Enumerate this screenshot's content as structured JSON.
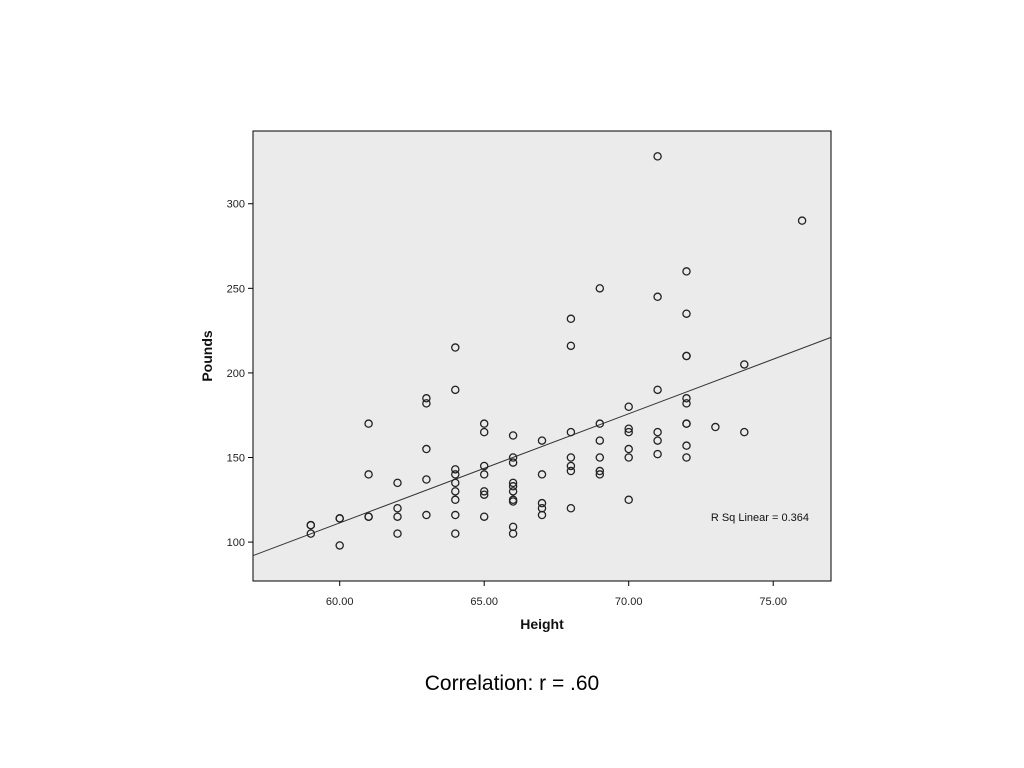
{
  "chart_data": {
    "type": "scatter",
    "xlabel": "Height",
    "ylabel": "Pounds",
    "xlim": [
      57,
      77
    ],
    "ylim": [
      77,
      343
    ],
    "x_ticks": [
      60,
      65,
      70,
      75
    ],
    "x_tick_labels": [
      "60.00",
      "65.00",
      "70.00",
      "75.00"
    ],
    "y_ticks": [
      100,
      150,
      200,
      250,
      300
    ],
    "y_tick_labels": [
      "100",
      "150",
      "200",
      "250",
      "300"
    ],
    "grid": false,
    "plot_background": "#ebebeb",
    "marker": "open-circle",
    "fit_line": {
      "type": "linear",
      "x": [
        57,
        77
      ],
      "y": [
        92,
        221
      ]
    },
    "annotation": "R Sq Linear = 0.364",
    "points": [
      [
        59,
        110
      ],
      [
        59,
        110
      ],
      [
        59,
        105
      ],
      [
        60,
        114
      ],
      [
        60,
        114
      ],
      [
        60,
        98
      ],
      [
        61,
        170
      ],
      [
        61,
        140
      ],
      [
        61,
        115
      ],
      [
        61,
        115
      ],
      [
        62,
        135
      ],
      [
        62,
        120
      ],
      [
        62,
        115
      ],
      [
        62,
        105
      ],
      [
        63,
        185
      ],
      [
        63,
        182
      ],
      [
        63,
        155
      ],
      [
        63,
        137
      ],
      [
        63,
        116
      ],
      [
        64,
        215
      ],
      [
        64,
        190
      ],
      [
        64,
        143
      ],
      [
        64,
        140
      ],
      [
        64,
        135
      ],
      [
        64,
        130
      ],
      [
        64,
        125
      ],
      [
        64,
        116
      ],
      [
        64,
        105
      ],
      [
        65,
        170
      ],
      [
        65,
        165
      ],
      [
        65,
        145
      ],
      [
        65,
        140
      ],
      [
        65,
        130
      ],
      [
        65,
        128
      ],
      [
        65,
        115
      ],
      [
        66,
        163
      ],
      [
        66,
        150
      ],
      [
        66,
        147
      ],
      [
        66,
        135
      ],
      [
        66,
        133
      ],
      [
        66,
        130
      ],
      [
        66,
        125
      ],
      [
        66,
        124
      ],
      [
        66,
        109
      ],
      [
        66,
        105
      ],
      [
        67,
        160
      ],
      [
        67,
        140
      ],
      [
        67,
        123
      ],
      [
        67,
        120
      ],
      [
        67,
        116
      ],
      [
        68,
        232
      ],
      [
        68,
        216
      ],
      [
        68,
        165
      ],
      [
        68,
        150
      ],
      [
        68,
        145
      ],
      [
        68,
        142
      ],
      [
        68,
        120
      ],
      [
        69,
        250
      ],
      [
        69,
        170
      ],
      [
        69,
        160
      ],
      [
        69,
        150
      ],
      [
        69,
        142
      ],
      [
        69,
        140
      ],
      [
        70,
        180
      ],
      [
        70,
        167
      ],
      [
        70,
        165
      ],
      [
        70,
        155
      ],
      [
        70,
        150
      ],
      [
        70,
        125
      ],
      [
        71,
        328
      ],
      [
        71,
        245
      ],
      [
        71,
        190
      ],
      [
        71,
        165
      ],
      [
        71,
        160
      ],
      [
        71,
        152
      ],
      [
        72,
        260
      ],
      [
        72,
        235
      ],
      [
        72,
        210
      ],
      [
        72,
        210
      ],
      [
        72,
        185
      ],
      [
        72,
        182
      ],
      [
        72,
        170
      ],
      [
        72,
        170
      ],
      [
        72,
        157
      ],
      [
        72,
        150
      ],
      [
        73,
        168
      ],
      [
        74,
        205
      ],
      [
        74,
        165
      ],
      [
        76,
        290
      ]
    ]
  },
  "caption": "Correlation:  r = .60"
}
